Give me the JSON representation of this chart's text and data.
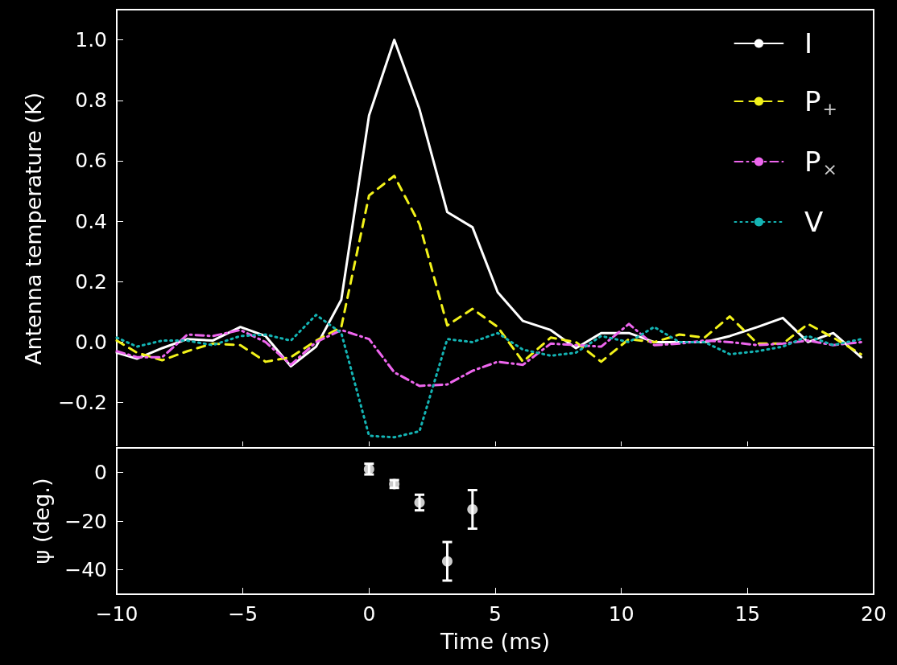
{
  "chart_data": [
    {
      "type": "line",
      "ylabel": "Antenna temperature (K)",
      "legend": "top right",
      "tick_labels": "y",
      "x": [
        -10,
        -9.2,
        -8.2,
        -7.2,
        -6.2,
        -5.1,
        -4.1,
        -3.1,
        -2.1,
        -1.1,
        0,
        1.0,
        2.0,
        3.1,
        4.1,
        5.1,
        6.1,
        7.2,
        8.2,
        9.2,
        10.3,
        11.3,
        12.3,
        13.3,
        14.3,
        15.4,
        16.4,
        17.4,
        18.4,
        19.5
      ],
      "series": [
        {
          "name": "I",
          "color": "#ffffff",
          "line_style": "solid",
          "values": [
            -0.035,
            -0.055,
            -0.02,
            0.01,
            0.005,
            0.05,
            0.02,
            -0.08,
            -0.015,
            0.14,
            0.75,
            1.0,
            0.77,
            0.43,
            0.38,
            0.165,
            0.07,
            0.04,
            -0.02,
            0.03,
            0.03,
            0.0,
            0.0,
            0.0,
            0.02,
            0.05,
            0.08,
            0.0,
            0.03,
            -0.05
          ]
        },
        {
          "name": "P$_{+}$",
          "color": "#f2f21a",
          "line_style": "dashed",
          "values": [
            0.005,
            -0.035,
            -0.06,
            -0.03,
            -0.005,
            -0.01,
            -0.065,
            -0.05,
            0.005,
            0.05,
            0.485,
            0.55,
            0.39,
            0.055,
            0.11,
            0.05,
            -0.065,
            0.015,
            0.0,
            -0.065,
            0.01,
            0.0,
            0.025,
            0.015,
            0.085,
            -0.005,
            -0.005,
            0.06,
            0.015,
            -0.04
          ]
        },
        {
          "name": "P$_{×}$",
          "color": "#ee66ee",
          "line_style": "dashdot",
          "values": [
            -0.03,
            -0.05,
            -0.05,
            0.025,
            0.02,
            0.04,
            0.0,
            -0.075,
            0.0,
            0.04,
            0.01,
            -0.1,
            -0.145,
            -0.14,
            -0.095,
            -0.065,
            -0.075,
            -0.005,
            -0.01,
            -0.015,
            0.06,
            -0.01,
            -0.005,
            0.005,
            0.0,
            -0.01,
            -0.005,
            0.005,
            -0.01,
            0.0
          ]
        },
        {
          "name": "V",
          "color": "#14b4b4",
          "line_style": "dotted",
          "values": [
            0.015,
            -0.015,
            0.005,
            0.005,
            -0.01,
            0.02,
            0.025,
            0.005,
            0.09,
            0.03,
            -0.31,
            -0.315,
            -0.295,
            0.01,
            0.0,
            0.03,
            -0.025,
            -0.045,
            -0.035,
            0.02,
            0.0,
            0.05,
            0.0,
            0.0,
            -0.04,
            -0.03,
            -0.015,
            0.02,
            -0.01,
            0.01
          ]
        }
      ],
      "xlim": [
        -10,
        20
      ],
      "xticks": [
        -10,
        -5,
        0,
        5,
        10,
        15,
        20
      ],
      "ylim": [
        -0.35,
        1.1
      ],
      "yticks": [
        {
          "value": -0.2,
          "label": "−0.2"
        },
        {
          "value": 0,
          "label": "0.0"
        },
        {
          "value": 0.2,
          "label": "0.2"
        },
        {
          "value": 0.4,
          "label": "0.4"
        },
        {
          "value": 0.6,
          "label": "0.6"
        },
        {
          "value": 0.8,
          "label": "0.8"
        },
        {
          "value": 1.0,
          "label": "1.0"
        }
      ]
    },
    {
      "type": "scatter",
      "xlabel": "Time (ms)",
      "ylabel": "ψ (deg.)",
      "marker": "circle",
      "color": "#ffffff",
      "x": [
        0,
        1.0,
        2.0,
        3.1,
        4.1
      ],
      "values": [
        1.3,
        -4.8,
        -12.4,
        -36.5,
        -15.2
      ],
      "errors": [
        2.2,
        1.6,
        3.2,
        7.9,
        7.9
      ],
      "xlim": [
        -10,
        20
      ],
      "xticks": [
        {
          "value": -10,
          "label": "−10"
        },
        {
          "value": -5,
          "label": "−5"
        },
        0,
        5,
        10,
        15,
        20
      ],
      "ylim": [
        -50,
        10
      ],
      "yticks": [
        {
          "value": -40,
          "label": "−40"
        },
        {
          "value": -20,
          "label": "−20"
        },
        0
      ]
    }
  ]
}
